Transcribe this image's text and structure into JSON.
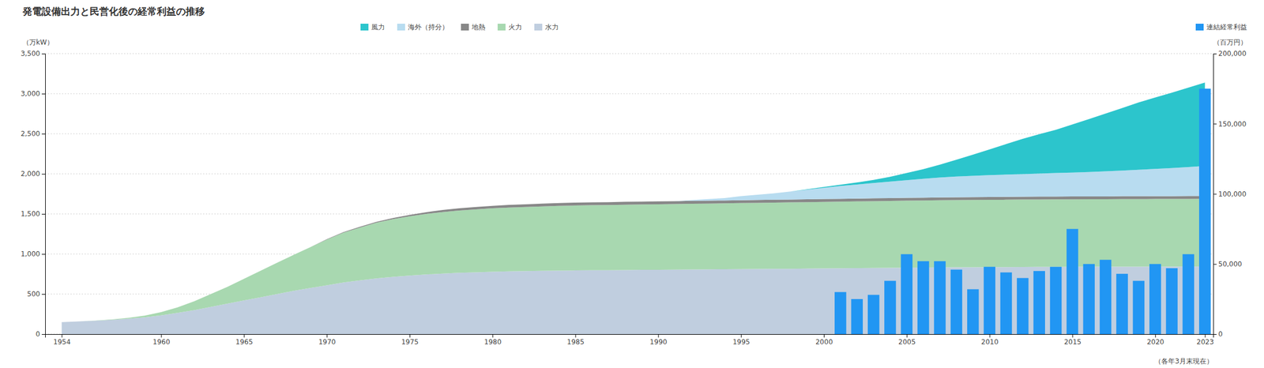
{
  "chart_data": {
    "type": "area",
    "stacked": true,
    "title": "発電設備出力と民営化後の経常利益の推移",
    "ylabel": "（万kW）",
    "y2label": "（百万円）",
    "annotation": "（各年3月末現在）",
    "grid": true,
    "legend": "top",
    "x": [
      1954,
      1955,
      1956,
      1957,
      1958,
      1959,
      1960,
      1961,
      1962,
      1963,
      1964,
      1965,
      1966,
      1967,
      1968,
      1969,
      1970,
      1971,
      1972,
      1973,
      1974,
      1975,
      1976,
      1977,
      1978,
      1979,
      1980,
      1981,
      1982,
      1983,
      1984,
      1985,
      1986,
      1987,
      1988,
      1989,
      1990,
      1991,
      1992,
      1993,
      1994,
      1995,
      1996,
      1997,
      1998,
      1999,
      2000,
      2001,
      2002,
      2003,
      2004,
      2005,
      2006,
      2007,
      2008,
      2009,
      2010,
      2011,
      2012,
      2013,
      2014,
      2015,
      2016,
      2017,
      2018,
      2019,
      2020,
      2021,
      2022,
      2023
    ],
    "xlim": [
      1953,
      2023.5
    ],
    "xticks": [
      1954,
      1960,
      1965,
      1970,
      1975,
      1980,
      1985,
      1990,
      1995,
      2000,
      2005,
      2010,
      2015,
      2020,
      2023
    ],
    "ylim": [
      0,
      3500
    ],
    "yticks": [
      0,
      500,
      {
        "value": 1000,
        "label": "1,000"
      },
      {
        "value": 1500,
        "label": "1,500"
      },
      {
        "value": 2000,
        "label": "2,000"
      },
      {
        "value": 2500,
        "label": "2,500"
      },
      {
        "value": 3000,
        "label": "3,000"
      },
      {
        "value": 3500,
        "label": "3,500"
      }
    ],
    "y2lim": [
      0,
      200000
    ],
    "y2ticks": [
      0,
      {
        "value": 50000,
        "label": "50,000"
      },
      {
        "value": 100000,
        "label": "100,000"
      },
      {
        "value": 150000,
        "label": "150,000"
      },
      {
        "value": 200000,
        "label": "200,000"
      }
    ],
    "series": [
      {
        "name": "水力",
        "type": "area",
        "color": "#C0CEDF",
        "values": [
          150,
          158,
          167,
          178,
          192,
          210,
          235,
          265,
          300,
          340,
          380,
          420,
          460,
          500,
          540,
          575,
          610,
          645,
          670,
          695,
          715,
          730,
          745,
          755,
          765,
          772,
          778,
          783,
          787,
          790,
          793,
          795,
          797,
          798,
          800,
          802,
          803,
          805,
          807,
          808,
          810,
          812,
          813,
          815,
          816,
          818,
          820,
          822,
          824,
          826,
          828,
          830,
          831,
          833,
          834,
          835,
          836,
          837,
          838,
          839,
          840,
          840,
          841,
          841,
          842,
          842,
          843,
          843,
          844,
          845
        ]
      },
      {
        "name": "火力",
        "type": "area",
        "color": "#A8D8B0",
        "values": [
          0,
          0,
          2,
          5,
          10,
          20,
          40,
          70,
          110,
          160,
          210,
          270,
          330,
          390,
          450,
          510,
          570,
          620,
          660,
          695,
          720,
          740,
          755,
          768,
          778,
          785,
          792,
          797,
          800,
          804,
          807,
          810,
          812,
          813,
          815,
          816,
          817,
          818,
          820,
          821,
          822,
          823,
          825,
          826,
          828,
          829,
          830,
          831,
          832,
          833,
          834,
          835,
          836,
          837,
          838,
          839,
          840,
          840,
          841,
          841,
          841,
          842,
          842,
          842,
          843,
          843,
          843,
          843,
          843,
          843
        ]
      },
      {
        "name": "地熱",
        "type": "area",
        "color": "#888888",
        "values": [
          0,
          0,
          0,
          0,
          0,
          0,
          0,
          0,
          0,
          0,
          0,
          0,
          0,
          0,
          0,
          0,
          5,
          8,
          10,
          12,
          14,
          18,
          22,
          26,
          28,
          30,
          31,
          32,
          33,
          34,
          35,
          36,
          36,
          36,
          36,
          36,
          36,
          36,
          36,
          36,
          36,
          36,
          36,
          36,
          36,
          36,
          36,
          36,
          36,
          36,
          36,
          36,
          36,
          36,
          36,
          36,
          36,
          36,
          36,
          36,
          36,
          36,
          36,
          36,
          36,
          36,
          36,
          36,
          36,
          36
        ]
      },
      {
        "name": "海外（持分）",
        "type": "area",
        "color": "#B8DCF0",
        "values": [
          0,
          0,
          0,
          0,
          0,
          0,
          0,
          0,
          0,
          0,
          0,
          0,
          0,
          0,
          0,
          0,
          0,
          0,
          0,
          0,
          0,
          0,
          0,
          0,
          0,
          0,
          0,
          0,
          0,
          0,
          0,
          0,
          0,
          0,
          0,
          0,
          0,
          0,
          10,
          20,
          30,
          50,
          65,
          80,
          100,
          120,
          140,
          160,
          175,
          190,
          205,
          220,
          235,
          248,
          258,
          265,
          272,
          278,
          282,
          288,
          293,
          298,
          304,
          312,
          320,
          330,
          340,
          350,
          362,
          375
        ]
      },
      {
        "name": "風力",
        "type": "area",
        "color": "#2CC5CC",
        "values": [
          0,
          0,
          0,
          0,
          0,
          0,
          0,
          0,
          0,
          0,
          0,
          0,
          0,
          0,
          0,
          0,
          0,
          0,
          0,
          0,
          0,
          0,
          0,
          0,
          0,
          0,
          0,
          0,
          0,
          0,
          0,
          0,
          0,
          0,
          0,
          0,
          0,
          0,
          0,
          0,
          0,
          0,
          0,
          0,
          0,
          5,
          10,
          15,
          25,
          40,
          60,
          90,
          120,
          160,
          210,
          265,
          320,
          380,
          440,
          490,
          540,
          600,
          660,
          720,
          780,
          840,
          890,
          940,
          990,
          1040
        ]
      },
      {
        "name": "連結経常利益",
        "type": "bar",
        "axis": "y2",
        "color": "#2196F3",
        "x": [
          2001,
          2002,
          2003,
          2004,
          2005,
          2006,
          2007,
          2008,
          2009,
          2010,
          2011,
          2012,
          2013,
          2014,
          2015,
          2016,
          2017,
          2018,
          2019,
          2020,
          2021,
          2022,
          2023
        ],
        "values": [
          30000,
          25000,
          28000,
          38000,
          57000,
          52000,
          52000,
          46000,
          32000,
          48000,
          44000,
          40000,
          45000,
          48000,
          75000,
          50000,
          53000,
          43000,
          38000,
          50000,
          47000,
          57000,
          175000
        ]
      }
    ]
  }
}
